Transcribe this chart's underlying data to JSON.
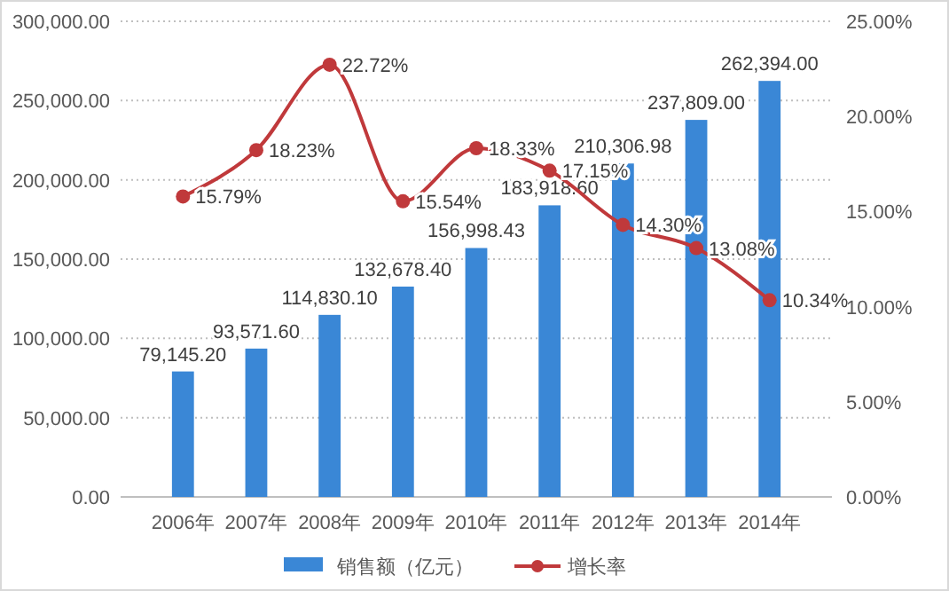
{
  "chart_data": {
    "type": "bar",
    "categories": [
      "2006年",
      "2007年",
      "2008年",
      "2009年",
      "2010年",
      "2011年",
      "2012年",
      "2013年",
      "2014年"
    ],
    "series": [
      {
        "name": "销售额（亿元）",
        "color": "#3a87d6",
        "values": [
          79145.2,
          93571.6,
          114830.1,
          132678.4,
          156998.43,
          183918.6,
          210306.98,
          237809,
          262394
        ],
        "value_labels": [
          "79,145.20",
          "93,571.60",
          "114,830.10",
          "132,678.40",
          "156,998.43",
          "183,918.60",
          "210,306.98",
          "237,809.00",
          "262,394.00"
        ]
      },
      {
        "name": "增长率",
        "type": "line",
        "axis": "y2",
        "color": "#c0393b",
        "marker": "circle",
        "values": [
          15.79,
          18.23,
          22.72,
          15.54,
          18.33,
          17.15,
          14.3,
          13.08,
          10.34
        ],
        "value_labels": [
          "15.79%",
          "18.23%",
          "22.72%",
          "15.54%",
          "18.33%",
          "17.15%",
          "14.30%",
          "13.08%",
          "10.34%"
        ]
      }
    ],
    "ylim": [
      0,
      300000
    ],
    "yticks": [
      {
        "value": 0,
        "label": "0.00"
      },
      {
        "value": 50000,
        "label": "50,000.00"
      },
      {
        "value": 100000,
        "label": "100,000.00"
      },
      {
        "value": 150000,
        "label": "150,000.00"
      },
      {
        "value": 200000,
        "label": "200,000.00"
      },
      {
        "value": 250000,
        "label": "250,000.00"
      },
      {
        "value": 300000,
        "label": "300,000.00"
      }
    ],
    "y2lim": [
      0,
      25
    ],
    "y2ticks": [
      {
        "value": 0,
        "label": "0.00%"
      },
      {
        "value": 5,
        "label": "5.00%"
      },
      {
        "value": 10,
        "label": "10.00%"
      },
      {
        "value": 15,
        "label": "15.00%"
      },
      {
        "value": 20,
        "label": "20.00%"
      },
      {
        "value": 25,
        "label": "25.00%"
      }
    ],
    "grid": "y",
    "legend": "bottom"
  }
}
